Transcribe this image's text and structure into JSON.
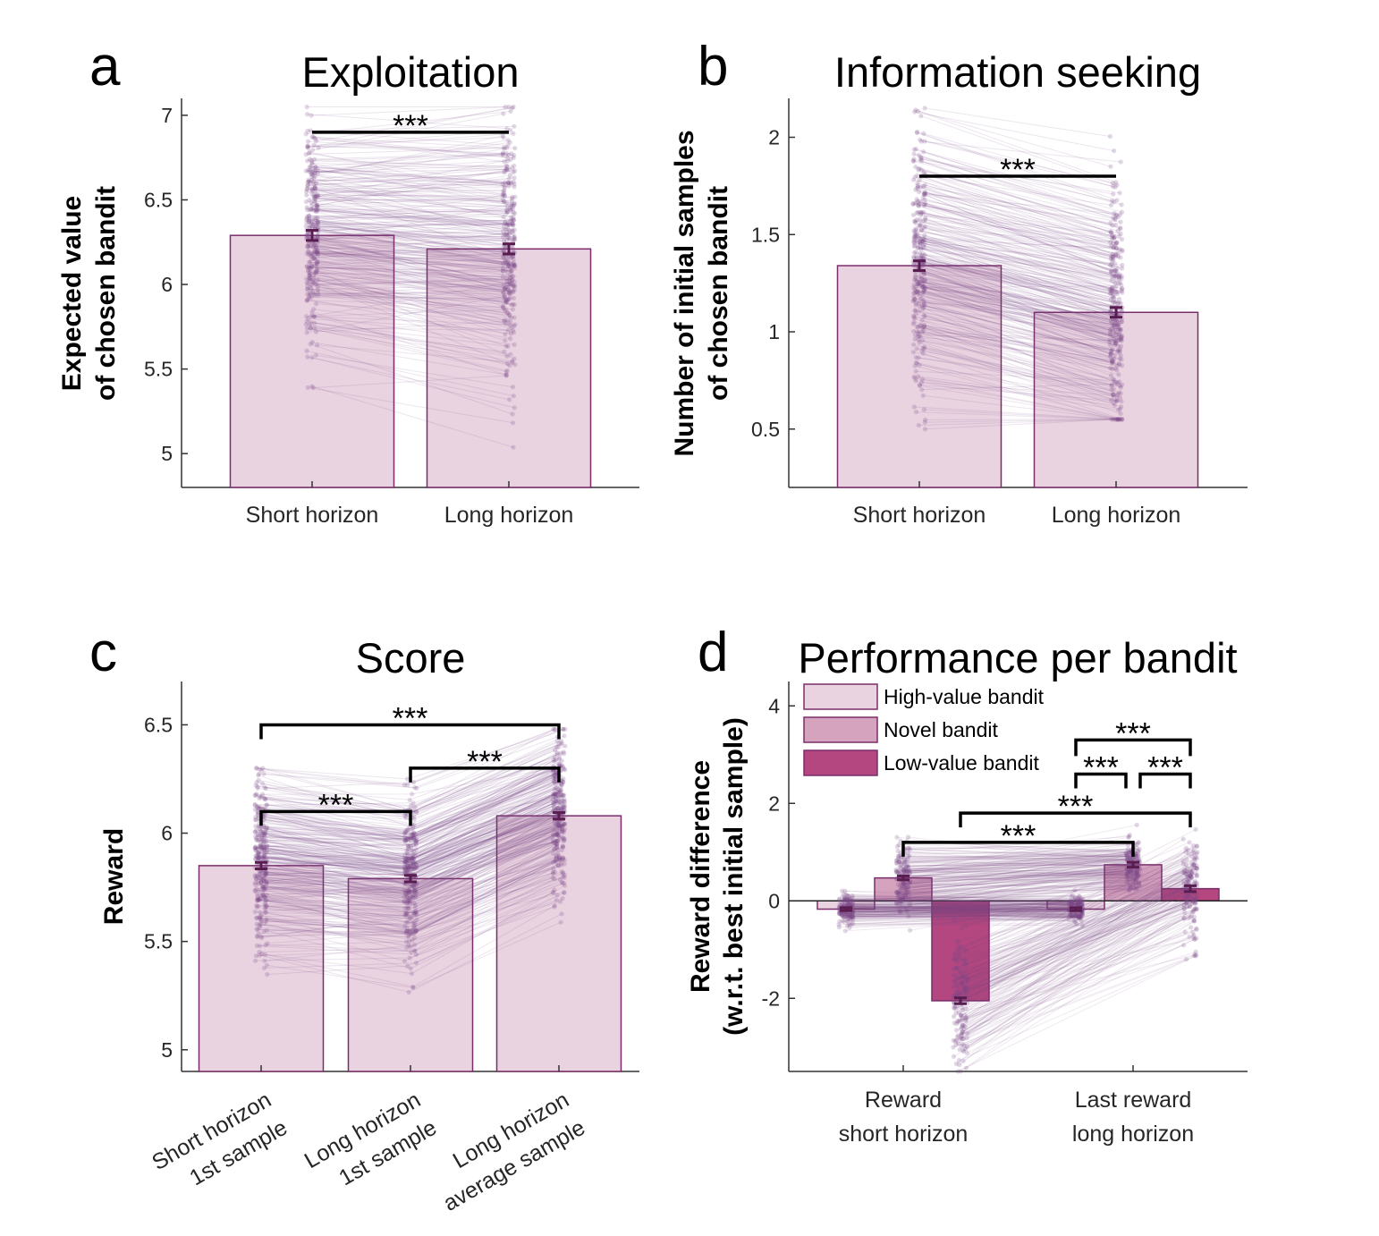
{
  "colors": {
    "bar_light": "#e9d3e0",
    "bar_mid": "#d6a3bf",
    "bar_dark": "#b4477f",
    "bar_edge": "#7a2d6a",
    "bar_edge_light": "#8a4a7e",
    "dots": "#7a4a87",
    "lines": "#7a4a87",
    "errorbar": "#5a1d50",
    "axis": "#333333",
    "sig": "#000000"
  },
  "chart_data": [
    {
      "panel": "a",
      "type": "bar",
      "title": "Exploitation",
      "ylabel": [
        "Expected value",
        "of chosen bandit"
      ],
      "xlabel": "",
      "ylim": [
        4.8,
        7.1
      ],
      "yticks": [
        5,
        5.5,
        6,
        6.5,
        7
      ],
      "ytick_labels": [
        "5",
        "5.5",
        "6",
        "6.5",
        "7"
      ],
      "categories": [
        "Short horizon",
        "Long horizon"
      ],
      "values": [
        6.29,
        6.21
      ],
      "errors": [
        0.03,
        0.03
      ],
      "individual_range": [
        [
          5.2,
          7.05
        ],
        [
          4.8,
          7.05
        ]
      ],
      "significance": [
        {
          "from": 0,
          "to": 1,
          "label": "***",
          "y": 6.9
        }
      ]
    },
    {
      "panel": "b",
      "type": "bar",
      "title": "Information seeking",
      "ylabel": [
        "Number of initial samples",
        "of chosen bandit"
      ],
      "xlabel": "",
      "ylim": [
        0.2,
        2.2
      ],
      "yticks": [
        0.5,
        1,
        1.5,
        2
      ],
      "ytick_labels": [
        "0.5",
        "1",
        "1.5",
        "2"
      ],
      "categories": [
        "Short horizon",
        "Long horizon"
      ],
      "values": [
        1.34,
        1.1
      ],
      "errors": [
        0.025,
        0.025
      ],
      "individual_range": [
        [
          0.5,
          2.15
        ],
        [
          0.55,
          2.15
        ]
      ],
      "significance": [
        {
          "from": 0,
          "to": 1,
          "label": "***",
          "y": 1.8
        }
      ]
    },
    {
      "panel": "c",
      "type": "bar",
      "title": "Score",
      "ylabel": [
        "Reward"
      ],
      "xlabel": "",
      "ylim": [
        4.9,
        6.7
      ],
      "yticks": [
        5,
        5.5,
        6,
        6.5
      ],
      "ytick_labels": [
        "5",
        "5.5",
        "6",
        "6.5"
      ],
      "categories": [
        [
          "Short horizon",
          "1st sample"
        ],
        [
          "Long horizon",
          "1st sample"
        ],
        [
          "Long horizon",
          "average sample"
        ]
      ],
      "values": [
        5.85,
        5.79,
        6.08
      ],
      "errors": [
        0.015,
        0.015,
        0.015
      ],
      "individual_range": [
        [
          5.2,
          6.3
        ],
        [
          5.25,
          6.25
        ],
        [
          5.45,
          6.48
        ]
      ],
      "significance": [
        {
          "from": 0,
          "to": 2,
          "label": "***",
          "y": 6.5
        },
        {
          "from": 1,
          "to": 2,
          "label": "***",
          "y": 6.3
        },
        {
          "from": 0,
          "to": 1,
          "label": "***",
          "y": 6.1
        }
      ]
    },
    {
      "panel": "d",
      "type": "bar",
      "title": "Performance per bandit",
      "ylabel": [
        "Reward difference",
        "(w.r.t. best initial sample)"
      ],
      "xlabel": "",
      "ylim": [
        -3.5,
        4.5
      ],
      "yticks": [
        -2,
        0,
        2,
        4
      ],
      "ytick_labels": [
        "-2",
        "0",
        "2",
        "4"
      ],
      "categories": [
        [
          "Reward",
          "short horizon"
        ],
        [
          "Last reward",
          "long horizon"
        ]
      ],
      "series": [
        {
          "name": "High-value bandit",
          "values": [
            -0.17,
            -0.17
          ],
          "errors": [
            0.03,
            0.03
          ]
        },
        {
          "name": "Novel bandit",
          "values": [
            0.47,
            0.74
          ],
          "errors": [
            0.04,
            0.05
          ]
        },
        {
          "name": "Low-value bandit",
          "values": [
            -2.05,
            0.25
          ],
          "errors": [
            0.06,
            0.06
          ]
        }
      ],
      "zero_line": true,
      "legend": "top-left",
      "significance": [
        {
          "label": "***",
          "between": "Last reward long horizon: High-value vs Low-value",
          "y": 3.3
        },
        {
          "label": "***",
          "between": "Last reward long horizon: High-value vs Novel",
          "y": 2.6
        },
        {
          "label": "***",
          "between": "Last reward long horizon: Novel vs Low-value",
          "y": 2.6
        },
        {
          "label": "***",
          "between": "Low-value: short horizon vs long horizon",
          "y": 1.8
        },
        {
          "label": "***",
          "between": "Novel: short horizon vs long horizon",
          "y": 1.2
        }
      ]
    }
  ]
}
